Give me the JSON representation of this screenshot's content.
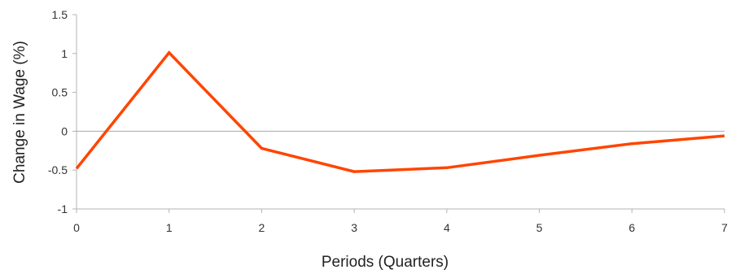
{
  "chart_data": {
    "type": "line",
    "title": "",
    "xlabel": "Periods (Quarters)",
    "ylabel": "Change in Wage (%)",
    "x": [
      0,
      1,
      2,
      3,
      4,
      5,
      6,
      7
    ],
    "x_ticks": [
      "0",
      "1",
      "2",
      "3",
      "4",
      "5",
      "6",
      "7"
    ],
    "y_ticks": [
      "1.5",
      "1",
      "0.5",
      "0",
      "-0.5",
      "-1"
    ],
    "xlim": [
      0,
      7
    ],
    "ylim": [
      -1,
      1.5
    ],
    "grid": false,
    "legend": "none",
    "series": [
      {
        "values": [
          -0.48,
          1.01,
          -0.22,
          -0.52,
          -0.47,
          -0.31,
          -0.16,
          -0.06
        ],
        "color": "#ff4500"
      }
    ],
    "zero_line_color": "#a6a6a6",
    "axis_color": "#b3b3b3"
  }
}
